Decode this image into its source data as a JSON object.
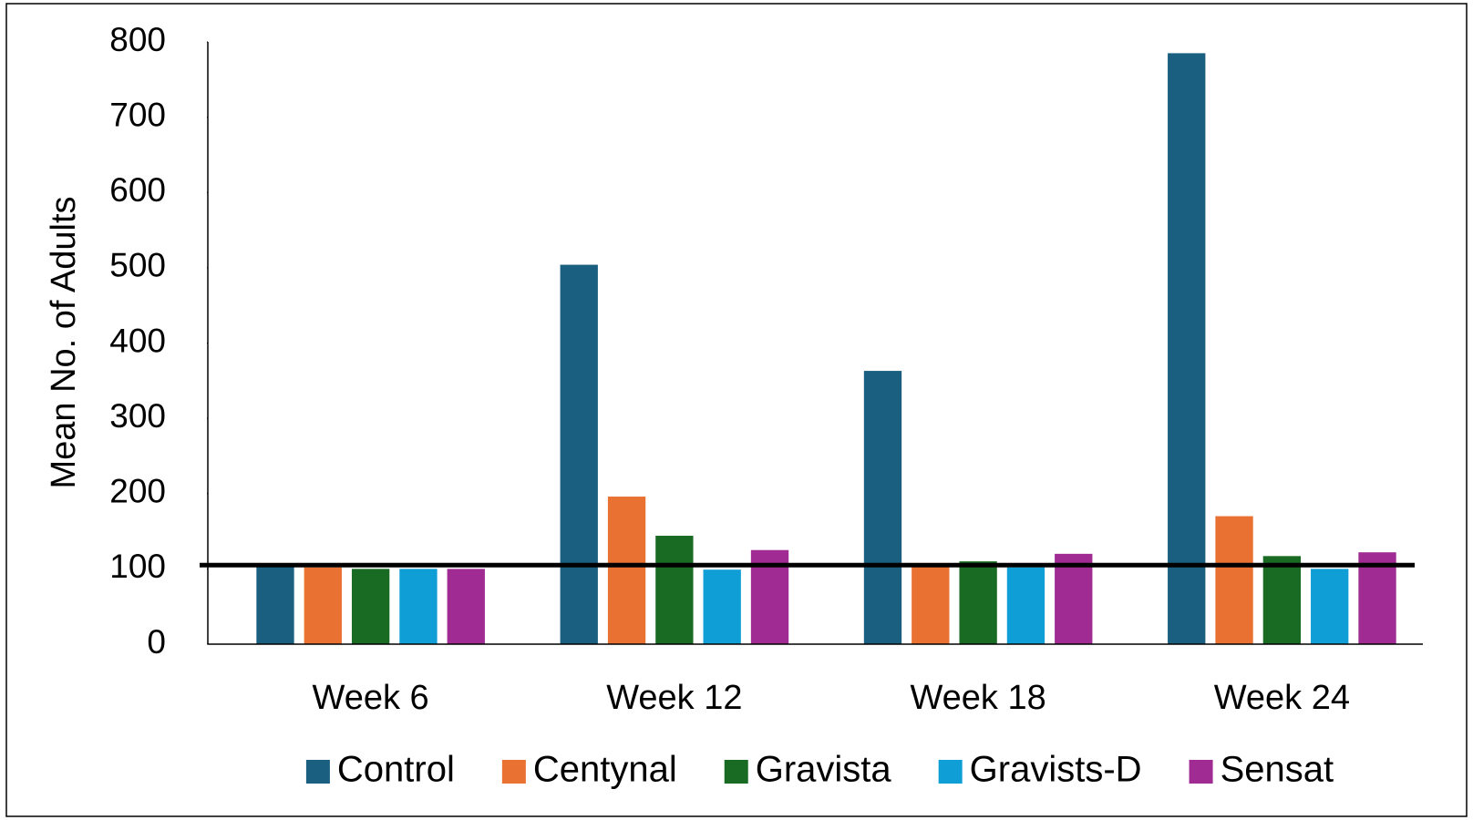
{
  "chart_data": {
    "type": "bar",
    "y_label": "Mean No. of Adults",
    "categories": [
      "Week 6",
      "Week 12",
      "Week 18",
      "Week 24"
    ],
    "series": [
      {
        "name": "Control",
        "color": "#1a5f80",
        "values": [
          105,
          504,
          363,
          785
        ]
      },
      {
        "name": "Centynal",
        "color": "#e97132",
        "values": [
          102,
          196,
          105,
          170
        ]
      },
      {
        "name": "Gravista",
        "color": "#196b24",
        "values": [
          100,
          144,
          110,
          117
        ]
      },
      {
        "name": "Gravists-D",
        "color": "#0f9ed5",
        "values": [
          100,
          99,
          102,
          100
        ]
      },
      {
        "name": "Sensat",
        "color": "#a02b93",
        "values": [
          100,
          125,
          120,
          122
        ]
      }
    ],
    "reference_line": 105,
    "ylim": [
      0,
      800
    ],
    "yticks": [
      0,
      100,
      200,
      300,
      400,
      500,
      600,
      700,
      800
    ],
    "legend": "bottom"
  }
}
